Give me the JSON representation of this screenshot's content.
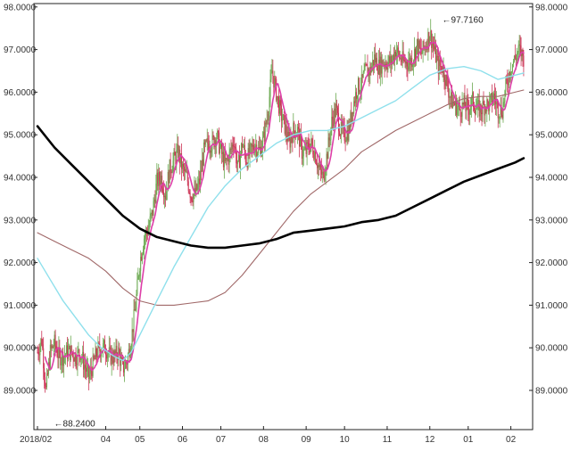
{
  "chart_data": {
    "type": "line",
    "chart_kind": "candlestick price chart with moving averages",
    "title": "",
    "xlabel": "",
    "ylabel": "",
    "ylim": [
      88.0,
      98.0
    ],
    "grid": false,
    "legend": "none",
    "y_ticks": [
      89.0,
      90.0,
      91.0,
      92.0,
      93.0,
      94.0,
      95.0,
      96.0,
      97.0,
      98.0
    ],
    "y_tick_labels": [
      "89.0000",
      "90.0000",
      "91.0000",
      "92.0000",
      "93.0000",
      "94.0000",
      "95.0000",
      "96.0000",
      "97.0000",
      "98.0000"
    ],
    "x_ticks": [
      {
        "label": "2018/02",
        "x": 0
      },
      {
        "label": "04",
        "x": 16
      },
      {
        "label": "05",
        "x": 24
      },
      {
        "label": "06",
        "x": 34
      },
      {
        "label": "07",
        "x": 43
      },
      {
        "label": "08",
        "x": 53
      },
      {
        "label": "09",
        "x": 63
      },
      {
        "label": "10",
        "x": 72
      },
      {
        "label": "11",
        "x": 82
      },
      {
        "label": "12",
        "x": 92
      },
      {
        "label": "01",
        "x": 101
      },
      {
        "label": "02",
        "x": 111
      }
    ],
    "x_range": [
      0,
      117
    ],
    "annotations": [
      {
        "text": "←88.2400",
        "x": 2,
        "y": 88.24
      },
      {
        "text": "←97.7160",
        "x": 93,
        "y": 97.716
      }
    ],
    "colors": {
      "up_candle": "#6aa84f",
      "down_candle": "#cc3355",
      "short_ma": "#dd3fa8",
      "mid_ma": "#8fe0ec",
      "long_ma": "#a06868",
      "very_long_ma": "#000000"
    },
    "series": [
      {
        "role": "price-candles",
        "anchors": [
          [
            0,
            89.9
          ],
          [
            1,
            90.2
          ],
          [
            2,
            89.0
          ],
          [
            3,
            89.9
          ],
          [
            4,
            90.1
          ],
          [
            5,
            89.8
          ],
          [
            6,
            89.8
          ],
          [
            7,
            89.9
          ],
          [
            8,
            89.9
          ],
          [
            9,
            89.8
          ],
          [
            10,
            89.9
          ],
          [
            11,
            89.6
          ],
          [
            12,
            89.3
          ],
          [
            13,
            89.6
          ],
          [
            14,
            89.9
          ],
          [
            15,
            90.0
          ],
          [
            16,
            90.0
          ],
          [
            17,
            89.8
          ],
          [
            18,
            89.8
          ],
          [
            19,
            89.9
          ],
          [
            20,
            89.5
          ],
          [
            21,
            89.7
          ],
          [
            22,
            90.2
          ],
          [
            23,
            91.0
          ],
          [
            24,
            92.0
          ],
          [
            25,
            92.6
          ],
          [
            26,
            92.8
          ],
          [
            27,
            93.2
          ],
          [
            28,
            93.9
          ],
          [
            29,
            94.0
          ],
          [
            30,
            93.6
          ],
          [
            31,
            94.2
          ],
          [
            32,
            94.4
          ],
          [
            33,
            94.6
          ],
          [
            34,
            94.2
          ],
          [
            35,
            94.0
          ],
          [
            36,
            93.6
          ],
          [
            37,
            93.6
          ],
          [
            38,
            93.9
          ],
          [
            39,
            94.6
          ],
          [
            40,
            94.8
          ],
          [
            41,
            94.8
          ],
          [
            42,
            95.0
          ],
          [
            43,
            94.6
          ],
          [
            44,
            94.3
          ],
          [
            45,
            94.5
          ],
          [
            46,
            94.9
          ],
          [
            47,
            94.2
          ],
          [
            48,
            94.8
          ],
          [
            49,
            94.4
          ],
          [
            50,
            94.6
          ],
          [
            51,
            94.8
          ],
          [
            52,
            94.6
          ],
          [
            53,
            94.9
          ],
          [
            54,
            95.5
          ],
          [
            55,
            96.5
          ],
          [
            56,
            96.0
          ],
          [
            57,
            95.5
          ],
          [
            58,
            95.2
          ],
          [
            59,
            94.8
          ],
          [
            60,
            95.1
          ],
          [
            61,
            95.1
          ],
          [
            62,
            94.6
          ],
          [
            63,
            94.6
          ],
          [
            64,
            94.8
          ],
          [
            65,
            94.6
          ],
          [
            66,
            94.2
          ],
          [
            67,
            94.0
          ],
          [
            68,
            94.6
          ],
          [
            69,
            95.3
          ],
          [
            70,
            95.6
          ],
          [
            71,
            95.1
          ],
          [
            72,
            95.0
          ],
          [
            73,
            95.1
          ],
          [
            74,
            95.7
          ],
          [
            75,
            96.1
          ],
          [
            76,
            96.2
          ],
          [
            77,
            96.5
          ],
          [
            78,
            96.5
          ],
          [
            79,
            96.8
          ],
          [
            80,
            96.6
          ],
          [
            81,
            96.7
          ],
          [
            82,
            96.7
          ],
          [
            83,
            96.7
          ],
          [
            84,
            97.0
          ],
          [
            85,
            96.8
          ],
          [
            86,
            96.7
          ],
          [
            87,
            96.7
          ],
          [
            88,
            96.8
          ],
          [
            89,
            97.1
          ],
          [
            90,
            96.9
          ],
          [
            91,
            97.1
          ],
          [
            92,
            97.4
          ],
          [
            93,
            97.0
          ],
          [
            94,
            96.6
          ],
          [
            95,
            96.6
          ],
          [
            96,
            96.2
          ],
          [
            97,
            95.8
          ],
          [
            98,
            95.7
          ],
          [
            99,
            95.6
          ],
          [
            100,
            95.7
          ],
          [
            101,
            95.6
          ],
          [
            102,
            95.8
          ],
          [
            103,
            95.6
          ],
          [
            104,
            95.6
          ],
          [
            105,
            95.7
          ],
          [
            106,
            95.7
          ],
          [
            107,
            95.9
          ],
          [
            108,
            95.6
          ],
          [
            109,
            95.6
          ],
          [
            110,
            96.2
          ],
          [
            111,
            96.6
          ],
          [
            112,
            96.8
          ],
          [
            113,
            97.0
          ],
          [
            114,
            96.8
          ]
        ]
      },
      {
        "role": "very-long-moving-average",
        "points": [
          [
            0,
            95.2
          ],
          [
            4,
            94.7
          ],
          [
            8,
            94.3
          ],
          [
            12,
            93.9
          ],
          [
            16,
            93.5
          ],
          [
            20,
            93.1
          ],
          [
            24,
            92.8
          ],
          [
            28,
            92.6
          ],
          [
            32,
            92.5
          ],
          [
            36,
            92.4
          ],
          [
            40,
            92.35
          ],
          [
            44,
            92.35
          ],
          [
            48,
            92.4
          ],
          [
            52,
            92.45
          ],
          [
            56,
            92.55
          ],
          [
            60,
            92.7
          ],
          [
            64,
            92.75
          ],
          [
            68,
            92.8
          ],
          [
            72,
            92.85
          ],
          [
            76,
            92.95
          ],
          [
            80,
            93.0
          ],
          [
            84,
            93.1
          ],
          [
            88,
            93.3
          ],
          [
            92,
            93.5
          ],
          [
            96,
            93.7
          ],
          [
            100,
            93.9
          ],
          [
            104,
            94.05
          ],
          [
            108,
            94.2
          ],
          [
            112,
            94.35
          ],
          [
            114,
            94.45
          ]
        ]
      },
      {
        "role": "long-moving-average",
        "points": [
          [
            0,
            92.7
          ],
          [
            4,
            92.5
          ],
          [
            8,
            92.3
          ],
          [
            12,
            92.1
          ],
          [
            16,
            91.8
          ],
          [
            20,
            91.4
          ],
          [
            24,
            91.1
          ],
          [
            28,
            91.0
          ],
          [
            32,
            91.0
          ],
          [
            36,
            91.05
          ],
          [
            40,
            91.1
          ],
          [
            44,
            91.3
          ],
          [
            48,
            91.7
          ],
          [
            52,
            92.2
          ],
          [
            56,
            92.7
          ],
          [
            60,
            93.2
          ],
          [
            64,
            93.6
          ],
          [
            68,
            93.9
          ],
          [
            72,
            94.2
          ],
          [
            76,
            94.6
          ],
          [
            80,
            94.85
          ],
          [
            84,
            95.1
          ],
          [
            88,
            95.3
          ],
          [
            92,
            95.5
          ],
          [
            96,
            95.7
          ],
          [
            100,
            95.85
          ],
          [
            104,
            95.9
          ],
          [
            108,
            95.9
          ],
          [
            112,
            96.0
          ],
          [
            114,
            96.05
          ]
        ]
      },
      {
        "role": "mid-moving-average",
        "points": [
          [
            0,
            92.1
          ],
          [
            3,
            91.6
          ],
          [
            6,
            91.1
          ],
          [
            9,
            90.7
          ],
          [
            12,
            90.3
          ],
          [
            15,
            90.0
          ],
          [
            18,
            89.8
          ],
          [
            20,
            89.7
          ],
          [
            22,
            89.9
          ],
          [
            24,
            90.3
          ],
          [
            28,
            91.1
          ],
          [
            32,
            91.9
          ],
          [
            36,
            92.6
          ],
          [
            40,
            93.3
          ],
          [
            44,
            93.8
          ],
          [
            48,
            94.2
          ],
          [
            52,
            94.5
          ],
          [
            56,
            94.8
          ],
          [
            60,
            95.0
          ],
          [
            64,
            95.1
          ],
          [
            68,
            95.1
          ],
          [
            72,
            95.2
          ],
          [
            76,
            95.4
          ],
          [
            80,
            95.6
          ],
          [
            84,
            95.8
          ],
          [
            88,
            96.1
          ],
          [
            92,
            96.4
          ],
          [
            96,
            96.55
          ],
          [
            100,
            96.6
          ],
          [
            104,
            96.5
          ],
          [
            108,
            96.3
          ],
          [
            112,
            96.4
          ],
          [
            114,
            96.45
          ]
        ]
      }
    ]
  }
}
